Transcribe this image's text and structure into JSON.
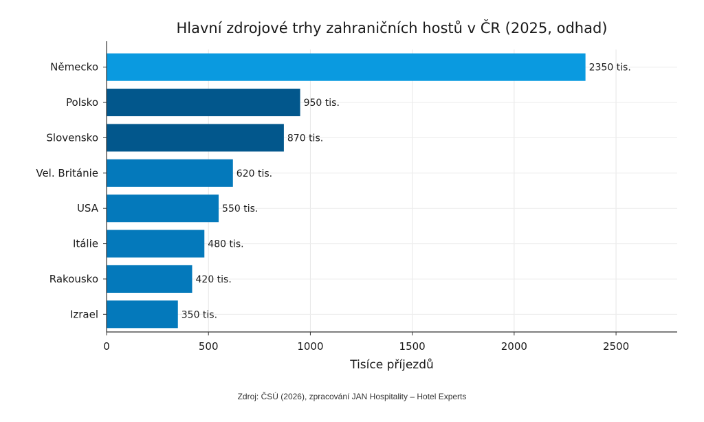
{
  "chart_data": {
    "type": "bar",
    "orientation": "horizontal",
    "title": "Hlavní zdrojové trhy zahraničních hostů v ČR (2025, odhad)",
    "categories": [
      "Německo",
      "Polsko",
      "Slovensko",
      "Vel. Británie",
      "USA",
      "Itálie",
      "Rakousko",
      "Izrael"
    ],
    "values": [
      2350,
      950,
      870,
      620,
      550,
      480,
      420,
      350
    ],
    "value_labels": [
      "2350 tis.",
      "950 tis.",
      "870 tis.",
      "620 tis.",
      "550 tis.",
      "480 tis.",
      "420 tis.",
      "350 tis."
    ],
    "bar_colors": [
      "#0a9ae0",
      "#02578c",
      "#02578c",
      "#0479bb",
      "#0479bb",
      "#0479bb",
      "#0479bb",
      "#0479bb"
    ],
    "xlabel": "Tisíce příjezdů",
    "ylabel": "",
    "xlim": [
      0,
      2800
    ],
    "xticks": [
      0,
      500,
      1000,
      1500,
      2000,
      2500
    ],
    "grid": true
  },
  "source": "Zdroj: ČSÚ (2026), zpracování JAN Hospitality – Hotel Experts"
}
